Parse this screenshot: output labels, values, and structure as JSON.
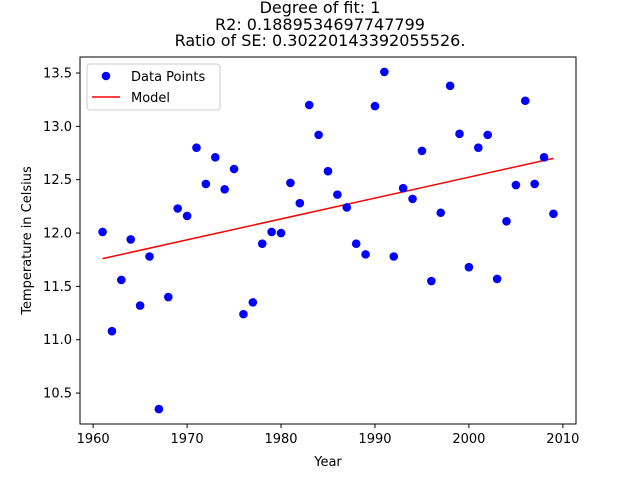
{
  "chart_data": {
    "type": "scatter",
    "title_lines": [
      "Degree of fit: 1",
      "R2: 0.1889534697747799",
      "Ratio of SE: 0.30220143392055526."
    ],
    "xlabel": "Year",
    "ylabel": "Temperature in Celsius",
    "xlim": [
      1958.6,
      2011.4
    ],
    "ylim": [
      10.21,
      13.65
    ],
    "xticks": [
      1960,
      1970,
      1980,
      1990,
      2000,
      2010
    ],
    "yticks": [
      10.5,
      11.0,
      11.5,
      12.0,
      12.5,
      13.0,
      13.5
    ],
    "ytick_labels": [
      "10.5",
      "11.0",
      "11.5",
      "12.0",
      "12.5",
      "13.0",
      "13.5"
    ],
    "legend": {
      "placement": "top-left",
      "points_label": "Data Points",
      "model_label": "Model"
    },
    "colors": {
      "points": "#0000ff",
      "model": "#ff0000"
    },
    "x": [
      1961,
      1962,
      1963,
      1964,
      1965,
      1966,
      1967,
      1968,
      1969,
      1970,
      1971,
      1972,
      1973,
      1974,
      1975,
      1976,
      1977,
      1978,
      1979,
      1980,
      1981,
      1982,
      1983,
      1984,
      1985,
      1986,
      1987,
      1988,
      1989,
      1990,
      1991,
      1992,
      1993,
      1994,
      1995,
      1996,
      1997,
      1998,
      1999,
      2000,
      2001,
      2002,
      2003,
      2004,
      2005,
      2006,
      2007,
      2008,
      2009
    ],
    "y": [
      12.01,
      11.08,
      11.56,
      11.94,
      11.32,
      11.78,
      10.35,
      11.4,
      12.23,
      12.16,
      12.8,
      12.46,
      12.71,
      12.41,
      12.6,
      11.24,
      11.35,
      11.9,
      12.01,
      12.0,
      12.47,
      12.28,
      13.2,
      12.92,
      12.58,
      12.36,
      12.24,
      11.9,
      11.8,
      13.19,
      13.51,
      11.78,
      12.42,
      12.32,
      12.77,
      11.55,
      12.19,
      13.38,
      12.93,
      11.68,
      12.8,
      12.92,
      11.57,
      12.11,
      12.45,
      13.24,
      12.46,
      12.71,
      12.18
    ],
    "model_line": {
      "x": [
        1961,
        2009
      ],
      "y": [
        11.76,
        12.7
      ]
    }
  }
}
